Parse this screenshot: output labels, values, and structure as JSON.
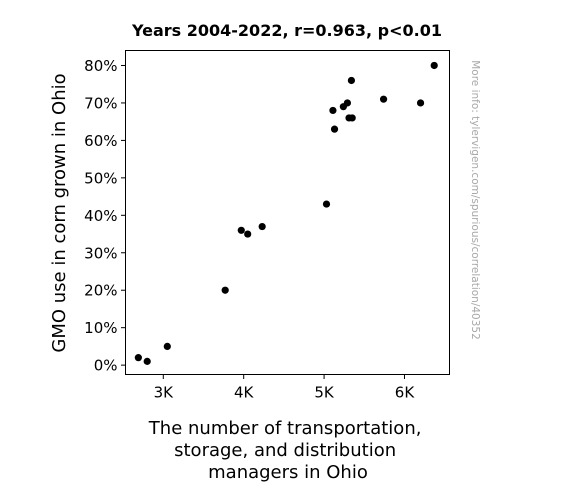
{
  "chart_data": {
    "type": "scatter",
    "title": "Years 2004-2022, r=0.963, p<0.01",
    "xlabel_lines": [
      "The number of transportation,",
      "storage, and distribution",
      "managers in Ohio"
    ],
    "ylabel": "GMO use in corn grown in Ohio",
    "xlim": [
      2530,
      6560
    ],
    "ylim": [
      -2.5,
      84
    ],
    "x_ticks": [
      {
        "value": 3000,
        "label": "3K"
      },
      {
        "value": 4000,
        "label": "4K"
      },
      {
        "value": 5000,
        "label": "5K"
      },
      {
        "value": 6000,
        "label": "6K"
      }
    ],
    "y_ticks": [
      {
        "value": 0,
        "label": "0%"
      },
      {
        "value": 10,
        "label": "10%"
      },
      {
        "value": 20,
        "label": "20%"
      },
      {
        "value": 30,
        "label": "30%"
      },
      {
        "value": 40,
        "label": "40%"
      },
      {
        "value": 50,
        "label": "50%"
      },
      {
        "value": 60,
        "label": "60%"
      },
      {
        "value": 70,
        "label": "70%"
      },
      {
        "value": 80,
        "label": "80%"
      }
    ],
    "points": [
      {
        "x": 2690,
        "y": 2
      },
      {
        "x": 2800,
        "y": 1
      },
      {
        "x": 3050,
        "y": 5
      },
      {
        "x": 3770,
        "y": 20
      },
      {
        "x": 3970,
        "y": 36
      },
      {
        "x": 4050,
        "y": 35
      },
      {
        "x": 4230,
        "y": 37
      },
      {
        "x": 5030,
        "y": 43
      },
      {
        "x": 5110,
        "y": 68
      },
      {
        "x": 5130,
        "y": 63
      },
      {
        "x": 5240,
        "y": 69
      },
      {
        "x": 5290,
        "y": 70
      },
      {
        "x": 5310,
        "y": 66
      },
      {
        "x": 5340,
        "y": 76
      },
      {
        "x": 5350,
        "y": 66
      },
      {
        "x": 5740,
        "y": 71
      },
      {
        "x": 6200,
        "y": 70
      },
      {
        "x": 6370,
        "y": 80
      }
    ],
    "marker_color": "#000000",
    "grid": false,
    "legend": "none"
  },
  "watermark": "More info: tylervigen.com/spurious/correlation/40352"
}
